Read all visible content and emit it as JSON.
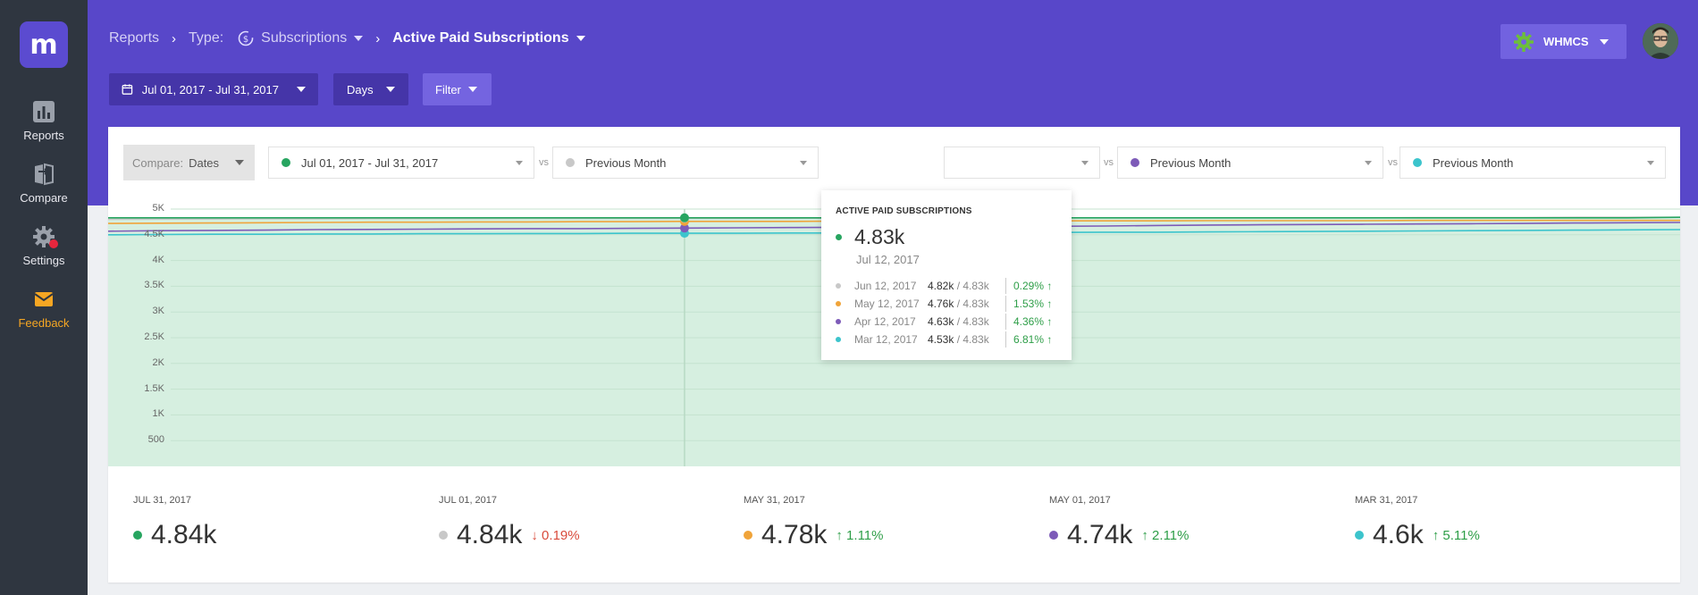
{
  "sidebar": {
    "logo": "m",
    "items": [
      {
        "label": "Reports",
        "icon": "bar-chart-icon"
      },
      {
        "label": "Compare",
        "icon": "compare-icon"
      },
      {
        "label": "Settings",
        "icon": "gear-icon"
      },
      {
        "label": "Feedback",
        "icon": "mail-icon"
      }
    ]
  },
  "breadcrumb": {
    "reports": "Reports",
    "type_label": "Type:",
    "type_value": "Subscriptions",
    "current": "Active Paid Subscriptions"
  },
  "toolbar": {
    "date_range": "Jul 01, 2017 - Jul 31, 2017",
    "interval": "Days",
    "filter": "Filter"
  },
  "account": {
    "name": "WHMCS"
  },
  "compare": {
    "label": "Compare:",
    "value": "Dates",
    "vs": "vs",
    "selectors": [
      {
        "label": "Jul 01, 2017 - Jul 31, 2017",
        "color": "#27a560"
      },
      {
        "label": "Previous Month",
        "color": "#c8c8c8"
      },
      {
        "label": "",
        "color": "#f0a43a"
      },
      {
        "label": "Previous Month",
        "color": "#7d5bb8"
      },
      {
        "label": "Previous Month",
        "color": "#3cc4cc"
      }
    ]
  },
  "tooltip": {
    "title": "ACTIVE PAID SUBSCRIPTIONS",
    "value": "4.83k",
    "date": "Jul 12, 2017",
    "rows": [
      {
        "date": "Jun 12, 2017",
        "value": "4.82k",
        "total": "/ 4.83k",
        "change": "0.29% ↑",
        "color": "#c8c8c8"
      },
      {
        "date": "May 12, 2017",
        "value": "4.76k",
        "total": "/ 4.83k",
        "change": "1.53% ↑",
        "color": "#f0a43a"
      },
      {
        "date": "Apr 12, 2017",
        "value": "4.63k",
        "total": "/ 4.83k",
        "change": "4.36% ↑",
        "color": "#7d5bb8"
      },
      {
        "date": "Mar 12, 2017",
        "value": "4.53k",
        "total": "/ 4.83k",
        "change": "6.81% ↑",
        "color": "#3cc4cc"
      }
    ]
  },
  "summary": [
    {
      "date": "JUL 31, 2017",
      "value": "4.84k",
      "change": "",
      "dir": "",
      "color": "#27a560"
    },
    {
      "date": "JUL 01, 2017",
      "value": "4.84k",
      "change": "↓ 0.19%",
      "dir": "down",
      "color": "#c8c8c8"
    },
    {
      "date": "MAY 31, 2017",
      "value": "4.78k",
      "change": "↑ 1.11%",
      "dir": "up",
      "color": "#f0a43a"
    },
    {
      "date": "MAY 01, 2017",
      "value": "4.74k",
      "change": "↑ 2.11%",
      "dir": "up",
      "color": "#7d5bb8"
    },
    {
      "date": "MAR 31, 2017",
      "value": "4.6k",
      "change": "↑ 5.11%",
      "dir": "up",
      "color": "#3cc4cc"
    }
  ],
  "chart_data": {
    "type": "area",
    "ylim": [
      0,
      5000
    ],
    "yticks": [
      "5K",
      "4.5K",
      "4K",
      "3.5K",
      "3K",
      "2.5K",
      "2K",
      "1.5K",
      "1K",
      "500"
    ],
    "ytick_values": [
      5000,
      4500,
      4000,
      3500,
      3000,
      2500,
      2000,
      1500,
      1000,
      500
    ],
    "hover_index": 11,
    "series": [
      {
        "color": "#27a560",
        "values": [
          4830,
          4830,
          4830,
          4830,
          4830,
          4830,
          4830,
          4830,
          4830,
          4830,
          4830,
          4830,
          4830,
          4830,
          4830,
          4830,
          4830,
          4830,
          4830,
          4830,
          4830,
          4830,
          4830,
          4830,
          4830,
          4830,
          4830,
          4830,
          4830,
          4830,
          4840
        ]
      },
      {
        "color": "#c8c8c8",
        "values": [
          4800,
          4805,
          4805,
          4810,
          4810,
          4815,
          4815,
          4815,
          4820,
          4820,
          4820,
          4820,
          4820,
          4820,
          4825,
          4825,
          4825,
          4825,
          4830,
          4830,
          4830,
          4830,
          4830,
          4830,
          4830,
          4835,
          4835,
          4835,
          4840,
          4840,
          4840
        ]
      },
      {
        "color": "#f0a43a",
        "values": [
          4720,
          4725,
          4730,
          4735,
          4740,
          4745,
          4745,
          4750,
          4750,
          4755,
          4755,
          4760,
          4760,
          4760,
          4765,
          4765,
          4765,
          4770,
          4770,
          4770,
          4770,
          4775,
          4775,
          4775,
          4775,
          4780,
          4780,
          4780,
          4780,
          4780,
          4780
        ]
      },
      {
        "color": "#7d5bb8",
        "values": [
          4570,
          4580,
          4585,
          4590,
          4600,
          4605,
          4610,
          4615,
          4620,
          4620,
          4625,
          4630,
          4635,
          4640,
          4645,
          4650,
          4655,
          4660,
          4665,
          4670,
          4680,
          4690,
          4695,
          4700,
          4705,
          4710,
          4715,
          4720,
          4730,
          4735,
          4740
        ]
      },
      {
        "color": "#3cc4cc",
        "values": [
          4500,
          4505,
          4510,
          4510,
          4515,
          4515,
          4520,
          4520,
          4525,
          4525,
          4530,
          4530,
          4530,
          4535,
          4535,
          4540,
          4540,
          4545,
          4545,
          4550,
          4550,
          4555,
          4560,
          4565,
          4570,
          4575,
          4580,
          4585,
          4590,
          4595,
          4600
        ]
      }
    ]
  }
}
